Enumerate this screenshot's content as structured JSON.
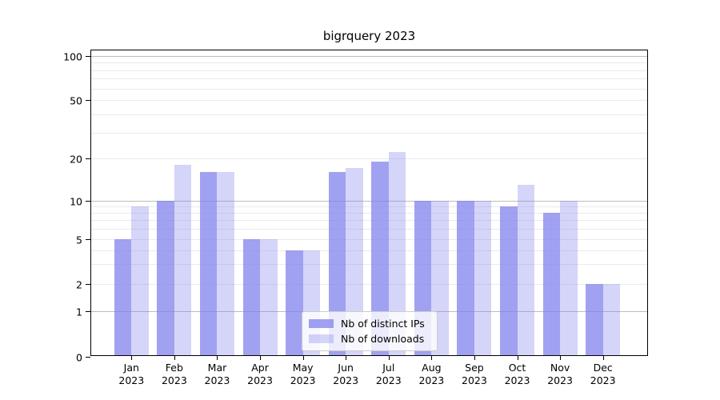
{
  "chart_data": {
    "type": "bar",
    "title": "bigrquery 2023",
    "categories": [
      "Jan",
      "Feb",
      "Mar",
      "Apr",
      "May",
      "Jun",
      "Jul",
      "Aug",
      "Sep",
      "Oct",
      "Nov",
      "Dec"
    ],
    "year_label": "2023",
    "series": [
      {
        "name": "Nb of distinct IPs",
        "color": "rgba(125,125,235,0.72)",
        "values": [
          5,
          10,
          16,
          5,
          4,
          16,
          19,
          10,
          10,
          9,
          8,
          2
        ]
      },
      {
        "name": "Nb of downloads",
        "color": "rgba(125,125,235,0.32)",
        "values": [
          9,
          18,
          16,
          5,
          4,
          17,
          22,
          10,
          10,
          13,
          10,
          2
        ]
      }
    ],
    "ylabel": "",
    "xlabel": "",
    "yscale": "symlog",
    "ylim": [
      0,
      100
    ],
    "ytick_values": [
      0,
      1,
      2,
      5,
      10,
      20,
      50,
      100
    ],
    "ytick_labels": [
      "0",
      "1",
      "2",
      "5",
      "10",
      "20",
      "50",
      "100"
    ],
    "minor_gridline_values": [
      3,
      4,
      6,
      7,
      8,
      9,
      30,
      40,
      60,
      70,
      80,
      90
    ],
    "major_gridline_values": [
      1,
      10,
      100
    ],
    "grid": true,
    "legend_position": "lower center"
  },
  "colors": {
    "bar_distinct_ips": "rgba(125,125,235,0.72)",
    "bar_downloads": "rgba(125,125,235,0.32)",
    "major_gridline": "#bdbdbd",
    "minor_gridline": "#ebebeb",
    "frame": "#000000",
    "background": "#ffffff"
  }
}
